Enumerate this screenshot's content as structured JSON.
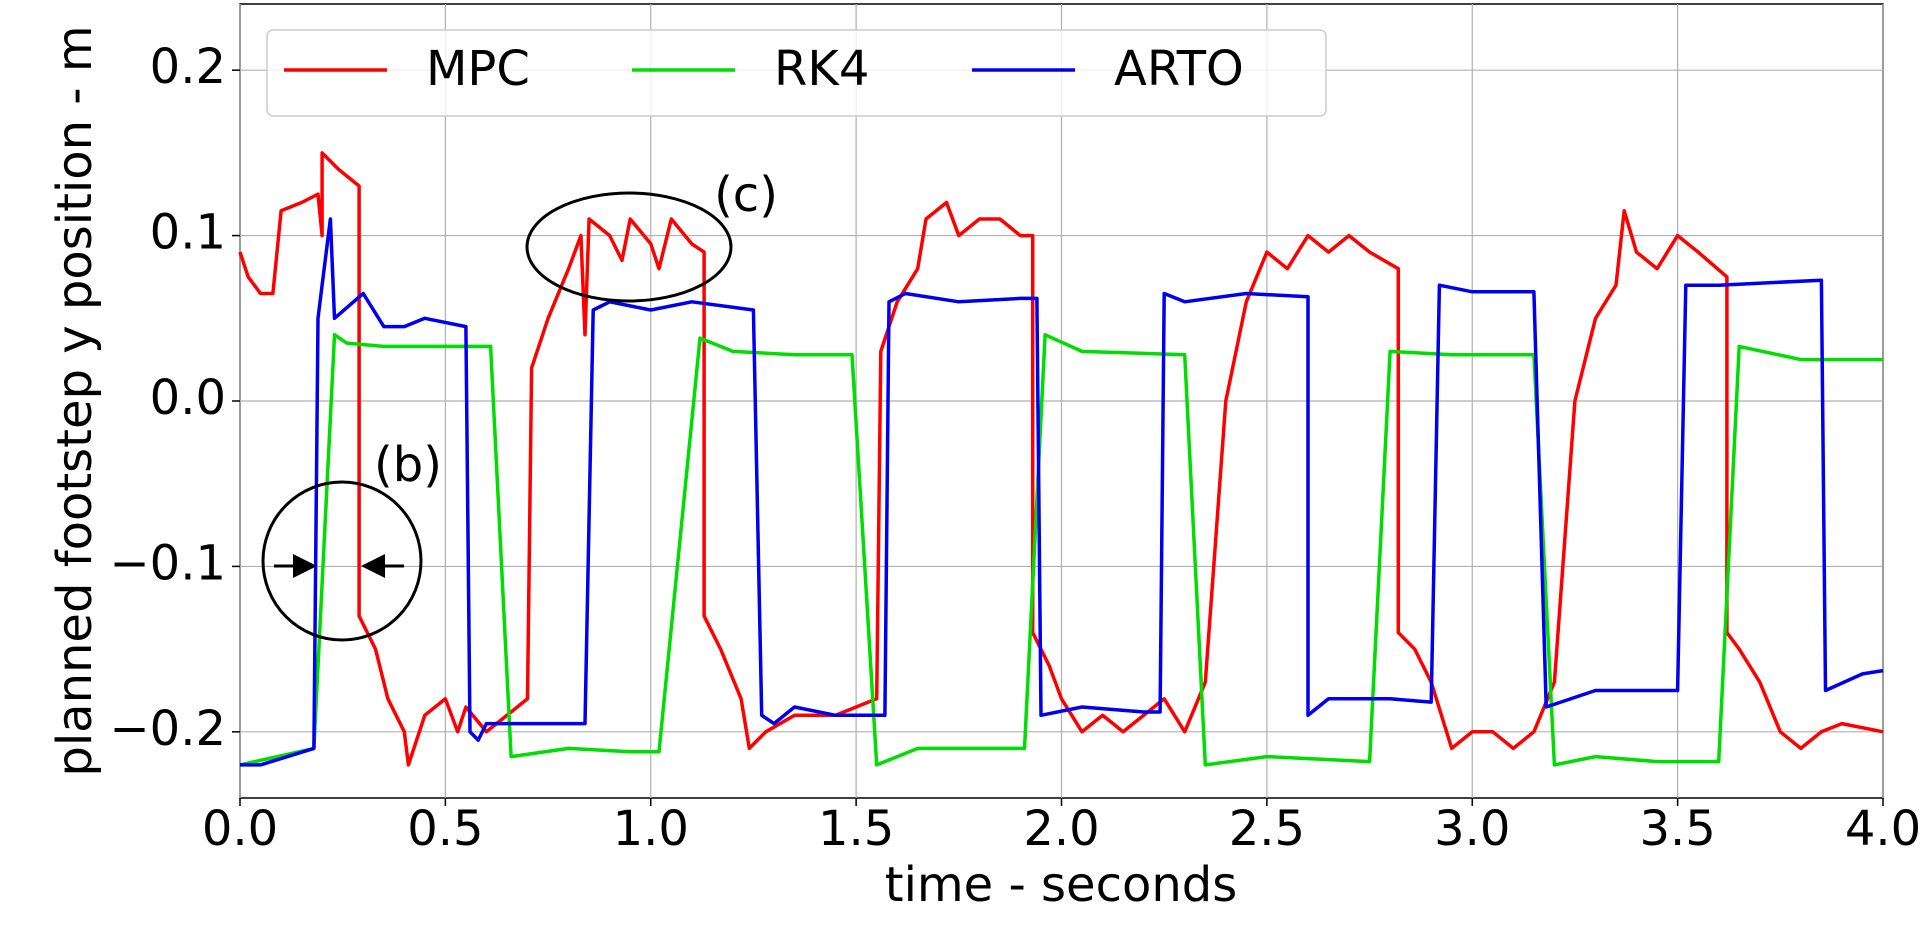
{
  "chart_data": {
    "type": "line",
    "xlabel": "time - seconds",
    "ylabel": "planned footstep y position - m",
    "xlim": [
      0,
      4
    ],
    "ylim": [
      -0.24,
      0.24
    ],
    "xticks": [
      {
        "value": 0,
        "label": "0.0"
      },
      0.5,
      {
        "value": 1,
        "label": "1.0"
      },
      1.5,
      {
        "value": 2,
        "label": "2.0"
      },
      2.5,
      {
        "value": 3,
        "label": "3.0"
      },
      3.5,
      {
        "value": 4,
        "label": "4.0"
      }
    ],
    "yticks": [
      {
        "value": -0.2,
        "label": "−0.2"
      },
      {
        "value": -0.1,
        "label": "−0.1"
      },
      {
        "value": 0,
        "label": "0.0"
      },
      0.1,
      0.2
    ],
    "grid": true,
    "legend": "upper left",
    "annotations": [
      "(b)",
      "(c)"
    ],
    "series": [
      {
        "name": "MPC",
        "color": "#ff0000",
        "x": [
          0,
          0.02,
          0.05,
          0.08,
          0.1,
          0.15,
          0.19,
          0.2,
          0.2,
          0.24,
          0.29,
          0.29,
          0.33,
          0.36,
          0.4,
          0.41,
          0.45,
          0.5,
          0.53,
          0.55,
          0.6,
          0.7,
          0.71,
          0.75,
          0.8,
          0.83,
          0.84,
          0.85,
          0.9,
          0.93,
          0.95,
          1.0,
          1.02,
          1.05,
          1.1,
          1.13,
          1.13,
          1.17,
          1.22,
          1.24,
          1.28,
          1.35,
          1.45,
          1.55,
          1.56,
          1.6,
          1.65,
          1.67,
          1.72,
          1.75,
          1.8,
          1.85,
          1.9,
          1.93,
          1.93,
          1.97,
          2.0,
          2.05,
          2.1,
          2.15,
          2.2,
          2.25,
          2.3,
          2.35,
          2.4,
          2.45,
          2.5,
          2.55,
          2.6,
          2.65,
          2.7,
          2.75,
          2.82,
          2.82,
          2.86,
          2.9,
          2.95,
          3.0,
          3.05,
          3.1,
          3.15,
          3.2,
          3.25,
          3.3,
          3.35,
          3.37,
          3.4,
          3.45,
          3.5,
          3.55,
          3.62,
          3.62,
          3.65,
          3.7,
          3.75,
          3.8,
          3.85,
          3.9,
          4.0
        ],
        "values": [
          0.09,
          0.075,
          0.065,
          0.065,
          0.115,
          0.12,
          0.125,
          0.1,
          0.15,
          0.14,
          0.13,
          -0.13,
          -0.15,
          -0.18,
          -0.2,
          -0.22,
          -0.19,
          -0.18,
          -0.2,
          -0.185,
          -0.2,
          -0.18,
          0.02,
          0.05,
          0.08,
          0.1,
          0.04,
          0.11,
          0.1,
          0.085,
          0.11,
          0.095,
          0.08,
          0.11,
          0.095,
          0.09,
          -0.13,
          -0.15,
          -0.18,
          -0.21,
          -0.2,
          -0.19,
          -0.19,
          -0.18,
          0.03,
          0.06,
          0.08,
          0.11,
          0.12,
          0.1,
          0.11,
          0.11,
          0.1,
          0.1,
          -0.14,
          -0.16,
          -0.18,
          -0.2,
          -0.19,
          -0.2,
          -0.19,
          -0.18,
          -0.2,
          -0.17,
          0.0,
          0.06,
          0.09,
          0.08,
          0.1,
          0.09,
          0.1,
          0.09,
          0.08,
          -0.14,
          -0.15,
          -0.17,
          -0.21,
          -0.2,
          -0.2,
          -0.21,
          -0.2,
          -0.17,
          0.0,
          0.05,
          0.07,
          0.115,
          0.09,
          0.08,
          0.1,
          0.09,
          0.075,
          -0.14,
          -0.15,
          -0.17,
          -0.2,
          -0.21,
          -0.2,
          -0.195,
          -0.2
        ]
      },
      {
        "name": "RK4",
        "color": "#00dd00",
        "x": [
          0,
          0.18,
          0.23,
          0.26,
          0.35,
          0.5,
          0.61,
          0.66,
          0.8,
          0.95,
          1.02,
          1.12,
          1.2,
          1.35,
          1.49,
          1.55,
          1.65,
          1.8,
          1.91,
          1.96,
          2.05,
          2.3,
          2.35,
          2.5,
          2.75,
          2.8,
          2.95,
          3.15,
          3.2,
          3.3,
          3.45,
          3.6,
          3.65,
          3.8,
          4.0
        ],
        "values": [
          -0.22,
          -0.21,
          0.04,
          0.035,
          0.033,
          0.033,
          0.033,
          -0.215,
          -0.21,
          -0.212,
          -0.212,
          0.038,
          0.03,
          0.028,
          0.028,
          -0.22,
          -0.21,
          -0.21,
          -0.21,
          0.04,
          0.03,
          0.028,
          -0.22,
          -0.215,
          -0.218,
          0.03,
          0.028,
          0.028,
          -0.22,
          -0.215,
          -0.218,
          -0.218,
          0.033,
          0.025,
          0.025
        ]
      },
      {
        "name": "ARTO",
        "color": "#0000ee",
        "x": [
          0,
          0.05,
          0.18,
          0.19,
          0.2,
          0.22,
          0.23,
          0.3,
          0.35,
          0.4,
          0.45,
          0.55,
          0.56,
          0.58,
          0.6,
          0.7,
          0.84,
          0.86,
          0.9,
          1.0,
          1.1,
          1.25,
          1.27,
          1.3,
          1.35,
          1.45,
          1.57,
          1.58,
          1.62,
          1.75,
          1.9,
          1.94,
          1.95,
          2.05,
          2.2,
          2.24,
          2.25,
          2.3,
          2.45,
          2.6,
          2.6,
          2.65,
          2.8,
          2.9,
          2.92,
          3.0,
          3.15,
          3.18,
          3.3,
          3.5,
          3.52,
          3.6,
          3.85,
          3.86,
          3.95,
          4.0
        ],
        "values": [
          -0.22,
          -0.22,
          -0.21,
          0.05,
          0.07,
          0.11,
          0.05,
          0.065,
          0.045,
          0.045,
          0.05,
          0.045,
          -0.2,
          -0.205,
          -0.195,
          -0.195,
          -0.195,
          0.055,
          0.06,
          0.055,
          0.06,
          0.055,
          -0.19,
          -0.195,
          -0.185,
          -0.19,
          -0.19,
          0.06,
          0.065,
          0.06,
          0.062,
          0.062,
          -0.19,
          -0.185,
          -0.188,
          -0.188,
          0.065,
          0.06,
          0.065,
          0.063,
          -0.19,
          -0.18,
          -0.18,
          -0.182,
          0.07,
          0.066,
          0.066,
          -0.185,
          -0.175,
          -0.175,
          0.07,
          0.07,
          0.073,
          -0.175,
          -0.165,
          -0.163
        ]
      }
    ]
  }
}
